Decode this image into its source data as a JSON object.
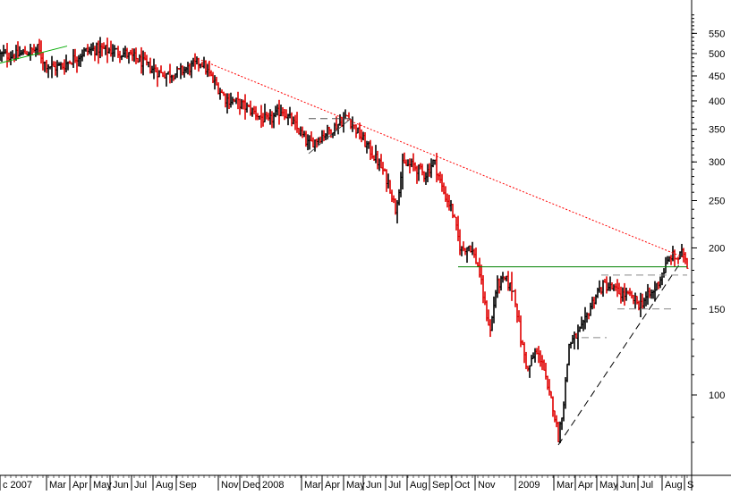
{
  "chart_data": {
    "type": "bar",
    "subtype": "ohlc",
    "y_scale": "log",
    "ylim": [
      72,
      625
    ],
    "grid": false,
    "colors": {
      "up_bar": "#000000",
      "down_bar": "#e00000",
      "background": "#ffffff",
      "axis": "#000000"
    },
    "y_ticks": [
      100,
      150,
      200,
      250,
      300,
      350,
      400,
      450,
      500,
      550
    ],
    "x_tick_labels": [
      "c 2007",
      "Mar",
      "Apr",
      "May",
      "Jun",
      "Jul",
      "Aug",
      "Sep",
      "Nov",
      "Dec",
      "2008",
      "Mar",
      "Apr",
      "May",
      "Jun",
      "Jul",
      "Aug",
      "Sep",
      "Oct",
      "Nov",
      "2009",
      "Mar",
      "Apr",
      "May",
      "Jun",
      "Jul",
      "Aug",
      "S"
    ],
    "close_path": [
      [
        0,
        497
      ],
      [
        18,
        496
      ],
      [
        30,
        503
      ],
      [
        42,
        512
      ],
      [
        50,
        478
      ],
      [
        60,
        468
      ],
      [
        70,
        472
      ],
      [
        82,
        488
      ],
      [
        95,
        505
      ],
      [
        110,
        512
      ],
      [
        125,
        507
      ],
      [
        140,
        500
      ],
      [
        155,
        485
      ],
      [
        168,
        468
      ],
      [
        180,
        455
      ],
      [
        195,
        455
      ],
      [
        210,
        466
      ],
      [
        225,
        482
      ],
      [
        238,
        440
      ],
      [
        252,
        405
      ],
      [
        268,
        395
      ],
      [
        285,
        378
      ],
      [
        300,
        362
      ],
      [
        315,
        385
      ],
      [
        330,
        355
      ],
      [
        345,
        325
      ],
      [
        360,
        340
      ],
      [
        375,
        355
      ],
      [
        388,
        372
      ],
      [
        400,
        345
      ],
      [
        412,
        320
      ],
      [
        425,
        295
      ],
      [
        435,
        270
      ],
      [
        442,
        240
      ],
      [
        450,
        295
      ],
      [
        462,
        295
      ],
      [
        475,
        282
      ],
      [
        485,
        302
      ],
      [
        495,
        262
      ],
      [
        505,
        240
      ],
      [
        515,
        198
      ],
      [
        525,
        203
      ],
      [
        535,
        182
      ],
      [
        542,
        152
      ],
      [
        548,
        135
      ],
      [
        555,
        168
      ],
      [
        565,
        172
      ],
      [
        575,
        162
      ],
      [
        582,
        130
      ],
      [
        590,
        112
      ],
      [
        598,
        122
      ],
      [
        606,
        118
      ],
      [
        612,
        102
      ],
      [
        618,
        95
      ],
      [
        624,
        82
      ],
      [
        630,
        97
      ],
      [
        636,
        127
      ],
      [
        644,
        132
      ],
      [
        652,
        138
      ],
      [
        660,
        152
      ],
      [
        668,
        163
      ],
      [
        676,
        168
      ],
      [
        684,
        165
      ],
      [
        692,
        162
      ],
      [
        700,
        160
      ],
      [
        708,
        157
      ],
      [
        715,
        153
      ],
      [
        722,
        158
      ],
      [
        730,
        162
      ],
      [
        737,
        172
      ],
      [
        744,
        183
      ],
      [
        750,
        193
      ],
      [
        757,
        190
      ],
      [
        764,
        196
      ],
      [
        768,
        185
      ]
    ],
    "annotations": {
      "resistance_line_red": {
        "from": [
          225,
          485
        ],
        "to": [
          768,
          190
        ],
        "color": "#ff0000",
        "style": "dotted"
      },
      "support_line_black": {
        "from": [
          624,
          79
        ],
        "to": [
          760,
          186
        ],
        "color": "#000000",
        "style": "dashed"
      },
      "horizontal_line_green": {
        "from": [
          512,
          183
        ],
        "to": [
          768,
          183
        ],
        "color": "#008000",
        "style": "solid"
      },
      "early_trend_green": {
        "from": [
          0,
          478
        ],
        "to": [
          75,
          518
        ],
        "color": "#00aa00",
        "style": "solid"
      },
      "level_line_175": {
        "from": [
          672,
          176
        ],
        "to": [
          768,
          176
        ],
        "color": "#888888",
        "style": "dashed"
      },
      "level_line_150": {
        "from": [
          690,
          150
        ],
        "to": [
          750,
          150
        ],
        "color": "#888888",
        "style": "dashed"
      },
      "level_line_130": {
        "from": [
          650,
          131
        ],
        "to": [
          678,
          131
        ],
        "color": "#888888",
        "style": "dashed"
      },
      "triangle_2008_a": {
        "from": [
          345,
          312
        ],
        "to": [
          392,
          368
        ],
        "color": "#555555",
        "style": "dashed"
      },
      "triangle_2008_b": {
        "from": [
          345,
          368
        ],
        "to": [
          392,
          368
        ],
        "color": "#555555",
        "style": "dashed"
      }
    }
  }
}
